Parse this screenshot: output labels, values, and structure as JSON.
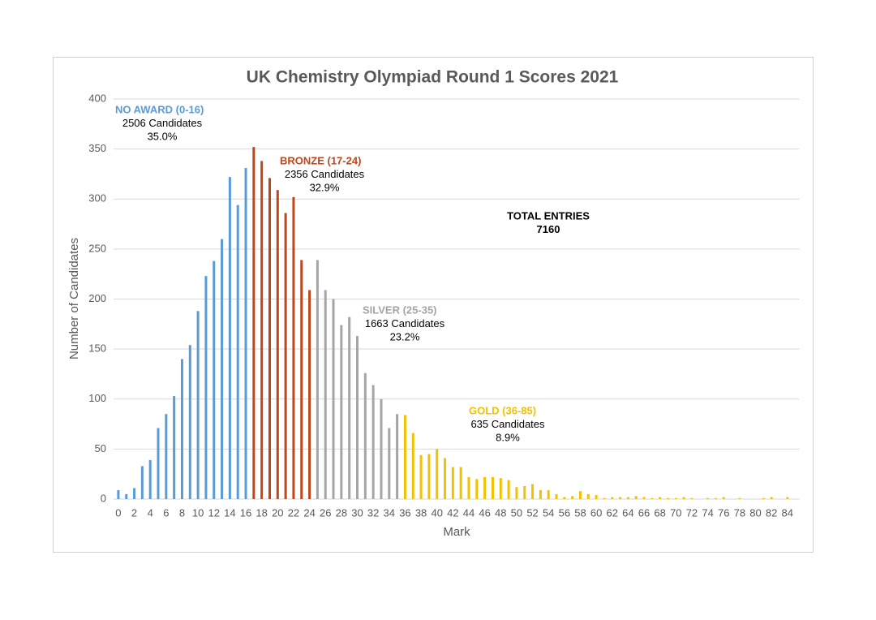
{
  "chart_data": {
    "type": "bar",
    "title": "UK Chemistry Olympiad Round 1 Scores 2021",
    "x_label": "Mark",
    "y_label": "Number of Candidates",
    "categories": [
      "0",
      null,
      "2",
      null,
      "4",
      null,
      "6",
      null,
      "8",
      null,
      "10",
      null,
      "12",
      null,
      "14",
      null,
      "16",
      null,
      "18",
      null,
      "20",
      null,
      "22",
      null,
      "24",
      null,
      "26",
      null,
      "28",
      null,
      "30",
      null,
      "32",
      null,
      "34",
      null,
      "36",
      null,
      "38",
      null,
      "40",
      null,
      "42",
      null,
      "44",
      null,
      "46",
      null,
      "48",
      null,
      "50",
      null,
      "52",
      null,
      "54",
      null,
      "56",
      null,
      "58",
      null,
      "60",
      null,
      "62",
      null,
      "64",
      null,
      "66",
      null,
      "68",
      null,
      "70",
      null,
      "72",
      null,
      "74",
      null,
      "76",
      null,
      "78",
      null,
      "80",
      null,
      "82",
      null,
      "84",
      null
    ],
    "values": [
      9,
      5,
      11,
      33,
      39,
      71,
      85,
      103,
      140,
      154,
      188,
      223,
      238,
      260,
      322,
      294,
      331,
      352,
      338,
      321,
      309,
      286,
      302,
      239,
      209,
      239,
      209,
      200,
      174,
      182,
      163,
      126,
      114,
      100,
      71,
      85,
      84,
      66,
      44,
      45,
      50,
      41,
      32,
      32,
      22,
      20,
      22,
      22,
      21,
      19,
      12,
      13,
      15,
      9,
      9,
      5,
      2,
      3,
      8,
      5,
      4,
      1,
      2,
      2,
      2,
      3,
      2,
      1,
      2,
      1,
      1,
      2,
      1,
      0,
      1,
      1,
      2,
      0,
      1,
      0,
      0,
      1,
      2,
      0,
      2,
      0
    ],
    "colors": [
      "#5b9bd5",
      "#5b9bd5",
      "#5b9bd5",
      "#5b9bd5",
      "#5b9bd5",
      "#5b9bd5",
      "#5b9bd5",
      "#5b9bd5",
      "#5b9bd5",
      "#5b9bd5",
      "#5b9bd5",
      "#5b9bd5",
      "#5b9bd5",
      "#5b9bd5",
      "#5b9bd5",
      "#5b9bd5",
      "#5b9bd5",
      "#c0461a",
      "#c0461a",
      "#c0461a",
      "#c0461a",
      "#c0461a",
      "#c0461a",
      "#c0461a",
      "#c0461a",
      "#a5a5a5",
      "#a5a5a5",
      "#a5a5a5",
      "#a5a5a5",
      "#a5a5a5",
      "#a5a5a5",
      "#a5a5a5",
      "#a5a5a5",
      "#a5a5a5",
      "#a5a5a5",
      "#a5a5a5",
      "#f2c200",
      "#f2c200",
      "#f2c200",
      "#f2c200",
      "#f2c200",
      "#f2c200",
      "#f2c200",
      "#f2c200",
      "#f2c200",
      "#f2c200",
      "#f2c200",
      "#f2c200",
      "#f2c200",
      "#f2c200",
      "#f2c200",
      "#f2c200",
      "#f2c200",
      "#f2c200",
      "#f2c200",
      "#f2c200",
      "#f2c200",
      "#f2c200",
      "#f2c200",
      "#f2c200",
      "#f2c200",
      "#f2c200",
      "#f2c200",
      "#f2c200",
      "#f2c200",
      "#f2c200",
      "#f2c200",
      "#f2c200",
      "#f2c200",
      "#f2c200",
      "#f2c200",
      "#f2c200",
      "#f2c200",
      "#f2c200",
      "#f2c200",
      "#f2c200",
      "#f2c200",
      "#f2c200",
      "#f2c200",
      "#f2c200",
      "#f2c200",
      "#f2c200",
      "#f2c200",
      "#f2c200",
      "#f2c200",
      "#f2c200"
    ],
    "ylim": [
      0,
      400
    ],
    "yticks": [
      0,
      50,
      100,
      150,
      200,
      250,
      300,
      350,
      400
    ],
    "grid": true,
    "annotations": [
      {
        "title": "NO AWARD (0-16)",
        "color": "#5b9bd5",
        "lines": [
          "2506 Candidates",
          "35.0%"
        ]
      },
      {
        "title": "BRONZE (17-24)",
        "color": "#c0461a",
        "lines": [
          "2356 Candidates",
          "32.9%"
        ]
      },
      {
        "title": "SILVER (25-35)",
        "color": "#a5a5a5",
        "lines": [
          "1663 Candidates",
          "23.2%"
        ]
      },
      {
        "title": "GOLD (36-85)",
        "color": "#f2c200",
        "lines": [
          "635 Candidates",
          "8.9%"
        ]
      },
      {
        "lines": [
          "TOTAL ENTRIES",
          "7160"
        ]
      }
    ]
  }
}
